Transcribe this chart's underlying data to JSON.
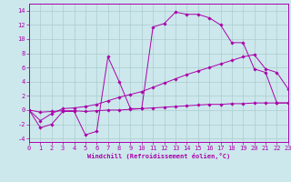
{
  "background_color": "#cce8ec",
  "grid_color": "#aacccc",
  "line_color": "#aa00aa",
  "spine_color": "#aa00aa",
  "xlim": [
    0,
    23
  ],
  "ylim": [
    -4.5,
    15.0
  ],
  "xticks": [
    0,
    1,
    2,
    3,
    4,
    5,
    6,
    7,
    8,
    9,
    10,
    11,
    12,
    13,
    14,
    15,
    16,
    17,
    18,
    19,
    20,
    21,
    22,
    23
  ],
  "yticks": [
    -4,
    -2,
    0,
    2,
    4,
    6,
    8,
    10,
    12,
    14
  ],
  "xlabel": "Windchill (Refroidissement éolien,°C)",
  "curves": [
    {
      "x": [
        0,
        1,
        2,
        3,
        4,
        5,
        6,
        7,
        8,
        9,
        10,
        11,
        12,
        13,
        14,
        15,
        16,
        17,
        18,
        19,
        20,
        21,
        22,
        23
      ],
      "y": [
        0.0,
        -2.5,
        -2.0,
        -0.2,
        -0.2,
        -3.5,
        -3.0,
        7.5,
        4.0,
        0.2,
        0.2,
        11.7,
        12.2,
        13.8,
        13.5,
        13.5,
        13.0,
        12.0,
        9.5,
        9.5,
        5.8,
        5.3,
        1.0,
        1.0
      ]
    },
    {
      "x": [
        0,
        1,
        2,
        3,
        4,
        5,
        6,
        7,
        8,
        9,
        10,
        11,
        12,
        13,
        14,
        15,
        16,
        17,
        18,
        19,
        20,
        21,
        22,
        23
      ],
      "y": [
        0.0,
        -1.5,
        -0.5,
        0.2,
        0.3,
        0.5,
        0.8,
        1.3,
        1.8,
        2.2,
        2.6,
        3.2,
        3.8,
        4.4,
        5.0,
        5.5,
        6.0,
        6.5,
        7.0,
        7.5,
        7.8,
        5.8,
        5.3,
        3.0
      ]
    },
    {
      "x": [
        0,
        1,
        2,
        3,
        4,
        5,
        6,
        7,
        8,
        9,
        10,
        11,
        12,
        13,
        14,
        15,
        16,
        17,
        18,
        19,
        20,
        21,
        22,
        23
      ],
      "y": [
        0.0,
        -0.3,
        -0.2,
        -0.1,
        -0.1,
        -0.2,
        -0.1,
        0.0,
        0.0,
        0.1,
        0.2,
        0.3,
        0.4,
        0.5,
        0.6,
        0.7,
        0.8,
        0.8,
        0.9,
        0.9,
        1.0,
        1.0,
        1.0,
        1.0
      ]
    }
  ],
  "tick_fontsize": 5,
  "xlabel_fontsize": 5
}
